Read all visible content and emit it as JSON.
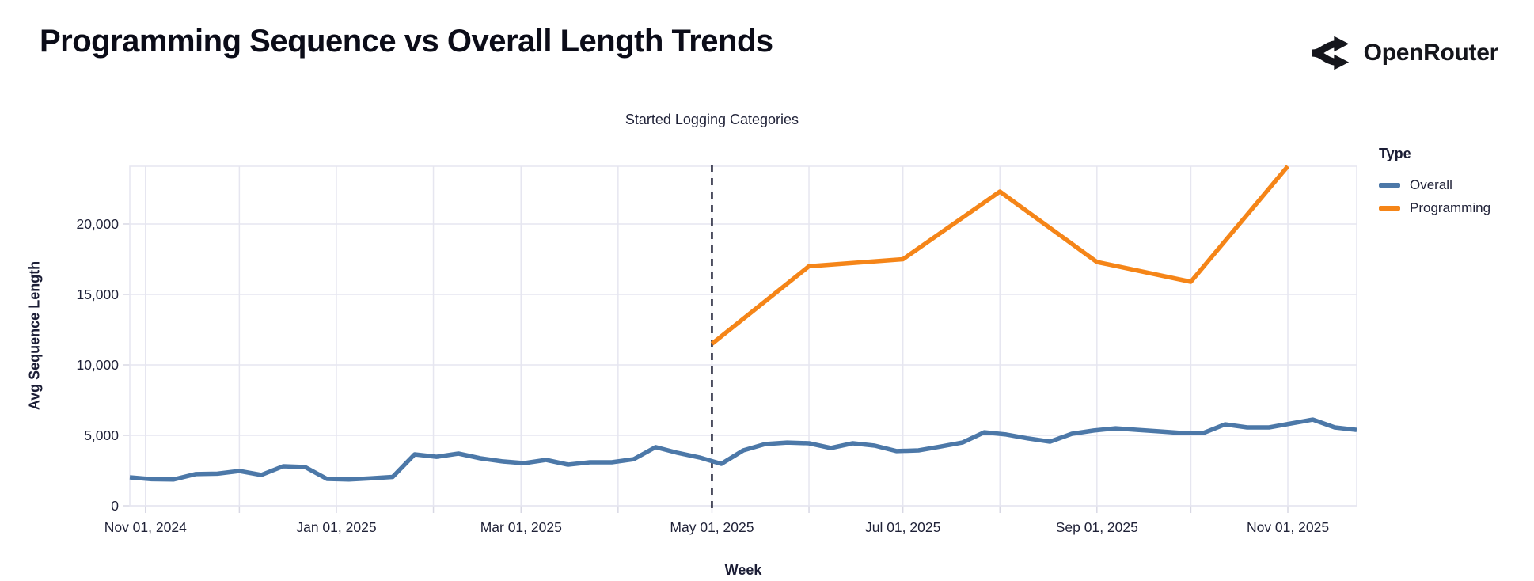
{
  "header": {
    "title": "Programming Sequence vs Overall Length Trends",
    "brand": "OpenRouter"
  },
  "annotation": {
    "label": "Started Logging Categories",
    "x": "2025-05-01"
  },
  "axes": {
    "x": {
      "title": "Week",
      "tick_labels": [
        "Nov 01, 2024",
        "Jan 01, 2025",
        "Mar 01, 2025",
        "May 01, 2025",
        "Jul 01, 2025",
        "Sep 01, 2025",
        "Nov 01, 2025"
      ]
    },
    "y": {
      "title": "Avg Sequence Length",
      "tick_labels": [
        "0",
        "5,000",
        "10,000",
        "15,000",
        "20,000"
      ],
      "tick_values": [
        0,
        5000,
        10000,
        15000,
        20000
      ]
    }
  },
  "legend": {
    "title": "Type",
    "items": [
      {
        "label": "Overall",
        "color": "#4c78a8"
      },
      {
        "label": "Programming",
        "color": "#f58518"
      }
    ]
  },
  "colors": {
    "overall": "#4c78a8",
    "programming": "#f58518",
    "grid": "#e6e6f0",
    "tick": "#d8d8e4",
    "text": "#1f2137",
    "annotation_line": "#1a1c33"
  },
  "chart_data": {
    "type": "line",
    "title": "Programming Sequence vs Overall Length Trends",
    "xlabel": "Week",
    "ylabel": "Avg Sequence Length",
    "x_range": [
      "2024-10-27",
      "2025-11-23"
    ],
    "ylim": [
      0,
      24100
    ],
    "grid": true,
    "legend_position": "right",
    "x_tick_dates": [
      "2024-11-01",
      "2025-01-01",
      "2025-03-01",
      "2025-05-01",
      "2025-07-01",
      "2025-09-01",
      "2025-11-01"
    ],
    "x_grid_months": [
      "2024-11-01",
      "2024-12-01",
      "2025-01-01",
      "2025-02-01",
      "2025-03-01",
      "2025-04-01",
      "2025-05-01",
      "2025-06-01",
      "2025-07-01",
      "2025-08-01",
      "2025-09-01",
      "2025-10-01",
      "2025-11-01"
    ],
    "series": [
      {
        "name": "Overall",
        "color": "#4c78a8",
        "cadence": "weekly",
        "start": "2024-10-27",
        "step_days": 7,
        "values": [
          2020,
          1890,
          1870,
          2250,
          2280,
          2470,
          2190,
          2810,
          2750,
          1910,
          1870,
          1950,
          2050,
          3650,
          3480,
          3710,
          3370,
          3150,
          3030,
          3260,
          2920,
          3090,
          3090,
          3310,
          4160,
          3760,
          3430,
          2980,
          3930,
          4380,
          4490,
          4440,
          4100,
          4440,
          4270,
          3880,
          3930,
          4200,
          4490,
          5220,
          5060,
          4780,
          4550,
          5110,
          5340,
          5500,
          5390,
          5280,
          5170,
          5170,
          5780,
          5560,
          5560,
          5840,
          6120,
          5560,
          5390
        ]
      },
      {
        "name": "Programming",
        "color": "#f58518",
        "cadence": "monthly",
        "points": [
          [
            "2025-05-01",
            11500
          ],
          [
            "2025-06-01",
            17000
          ],
          [
            "2025-07-01",
            17500
          ],
          [
            "2025-08-01",
            22300
          ],
          [
            "2025-09-01",
            17300
          ],
          [
            "2025-10-01",
            15900
          ],
          [
            "2025-11-01",
            24100
          ]
        ]
      }
    ],
    "annotation": {
      "label": "Started Logging Categories",
      "x": "2025-05-01"
    }
  }
}
